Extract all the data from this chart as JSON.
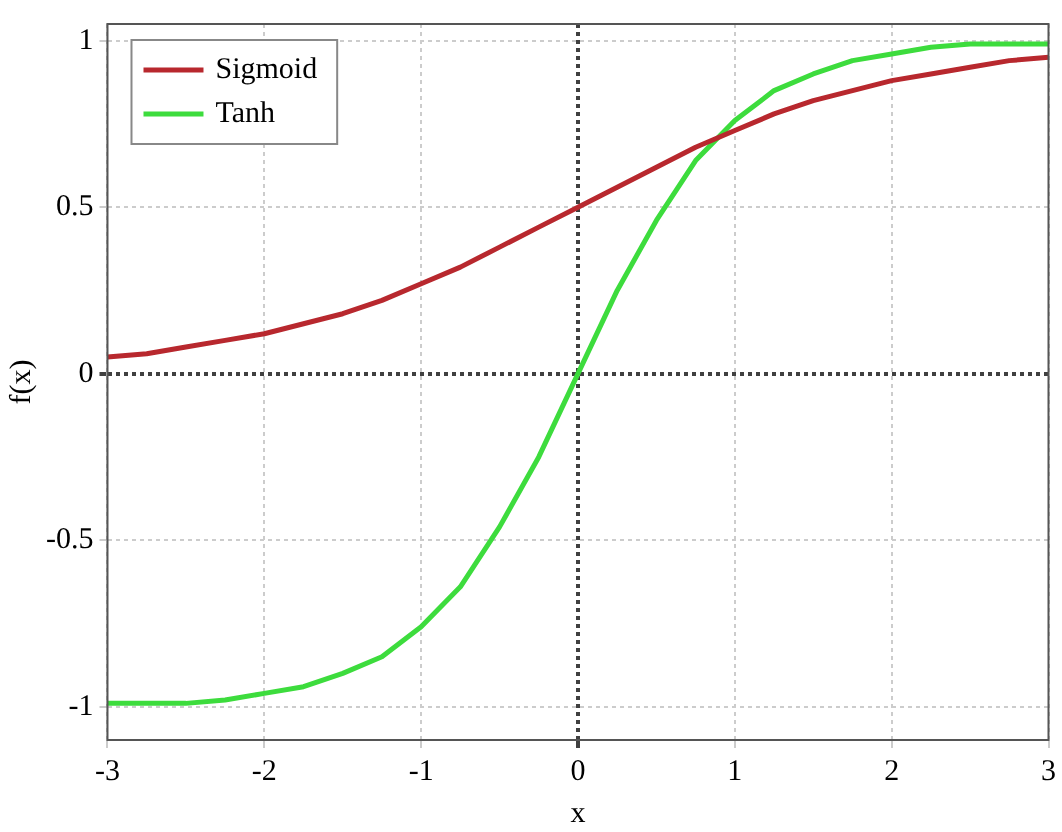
{
  "chart_data": {
    "type": "line",
    "xlabel": "x",
    "ylabel": "f(x)",
    "x": [
      -3,
      -2.75,
      -2.5,
      -2.25,
      -2,
      -1.75,
      -1.5,
      -1.25,
      -1,
      -0.75,
      -0.5,
      -0.25,
      0,
      0.25,
      0.5,
      0.75,
      1,
      1.25,
      1.5,
      1.75,
      2,
      2.25,
      2.5,
      2.75,
      3
    ],
    "series": [
      {
        "name": "Sigmoid",
        "color": "#b8282e",
        "values": [
          0.05,
          0.06,
          0.08,
          0.1,
          0.12,
          0.15,
          0.18,
          0.22,
          0.27,
          0.32,
          0.38,
          0.44,
          0.5,
          0.56,
          0.62,
          0.68,
          0.73,
          0.78,
          0.82,
          0.85,
          0.88,
          0.9,
          0.92,
          0.94,
          0.95
        ]
      },
      {
        "name": "Tanh",
        "color": "#3ddc3d",
        "values": [
          -0.99,
          -0.99,
          -0.99,
          -0.98,
          -0.96,
          -0.94,
          -0.9,
          -0.85,
          -0.76,
          -0.64,
          -0.46,
          -0.25,
          0,
          0.25,
          0.46,
          0.64,
          0.76,
          0.85,
          0.9,
          0.94,
          0.96,
          0.98,
          0.99,
          0.99,
          0.99
        ]
      }
    ],
    "xlim": [
      -3,
      3
    ],
    "xticks": [
      -3,
      -2,
      -1,
      0,
      1,
      2,
      3
    ],
    "ylim": [
      -1.1,
      1.05
    ],
    "yticks": [
      -1,
      -0.5,
      0,
      0.5,
      1
    ],
    "grid": true,
    "legend": "top left",
    "marker": "none",
    "line_style": "solid"
  }
}
